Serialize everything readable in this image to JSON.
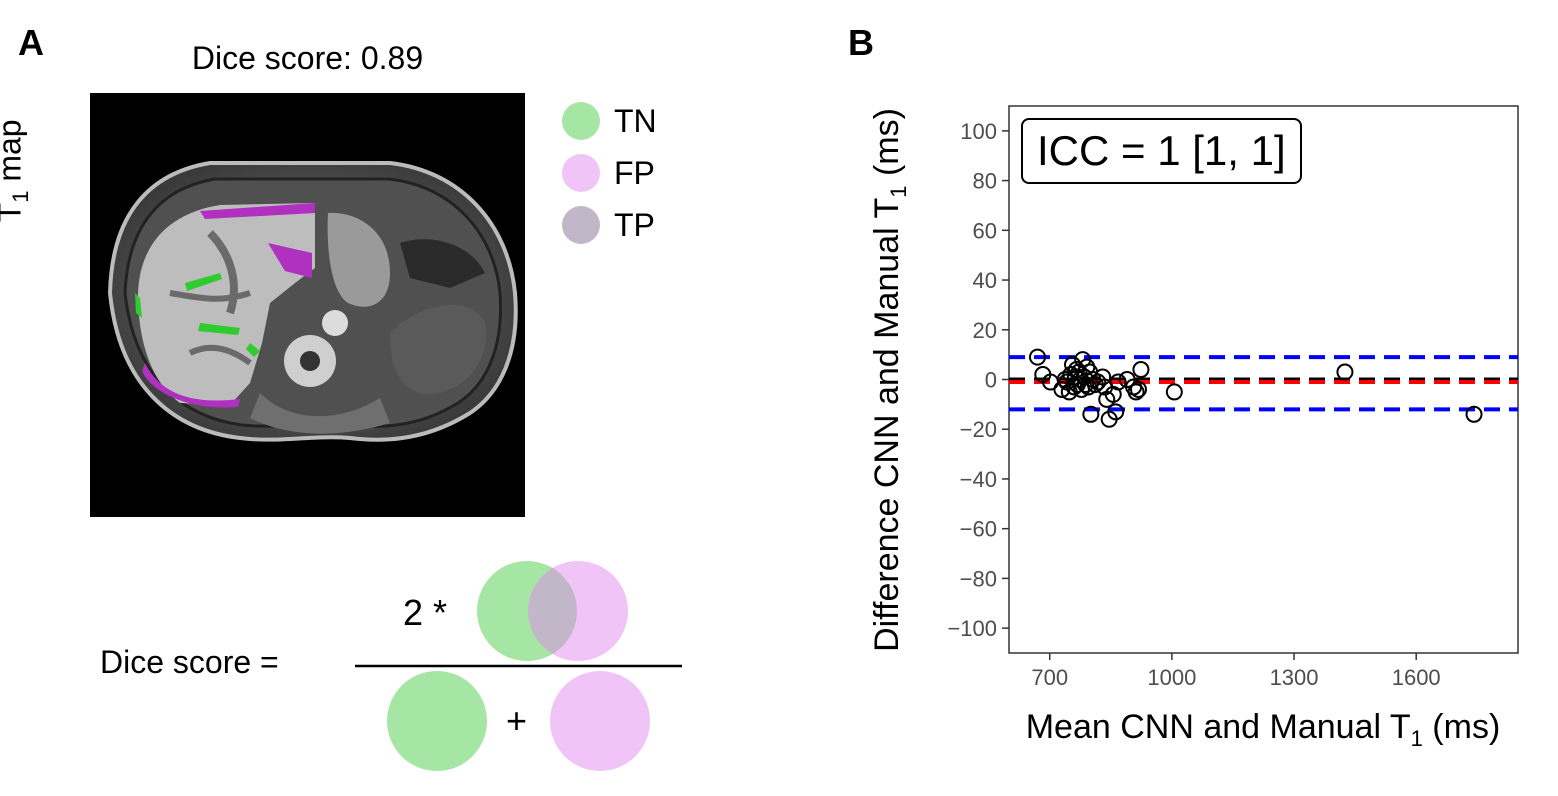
{
  "panel_a": {
    "letter": "A",
    "title": "Dice score: 0.89",
    "ylabel_main": "T",
    "ylabel_sub": "1",
    "ylabel_rest": " map",
    "legend": [
      {
        "label": "TN",
        "color": "#a5e6a4"
      },
      {
        "label": "FP",
        "color": "#f0c4f7"
      },
      {
        "label": "TP",
        "color": "#c2b7c9"
      }
    ],
    "formula": {
      "label": "Dice score =",
      "numerator_prefix": "2 *",
      "operator": "+"
    },
    "colors": {
      "green": "#a5e6a4",
      "pink": "#f0c4f7",
      "overlap": "#c2b7c9",
      "mask_green": "#2ecc2e",
      "mask_magenta": "#b030c0"
    }
  },
  "panel_b": {
    "letter": "B",
    "annotation": "ICC = 1 [1, 1]"
  },
  "chart_data": {
    "type": "scatter",
    "xlabel": "Mean CNN and Manual T₁ (ms)",
    "ylabel": "Difference CNN and Manual T₁ (ms)",
    "xlim": [
      600,
      1850
    ],
    "ylim": [
      -110,
      110
    ],
    "xticks": [
      700,
      1000,
      1300,
      1600
    ],
    "yticks": [
      100,
      80,
      60,
      40,
      20,
      0,
      -20,
      -40,
      -60,
      -80,
      -100
    ],
    "grid": false,
    "reference_lines": [
      {
        "y": 9,
        "color": "#0000ff",
        "style": "dashed"
      },
      {
        "y": -12,
        "color": "#0000ff",
        "style": "dashed"
      },
      {
        "y": 0,
        "color": "#000000",
        "style": "dashed"
      },
      {
        "y": -1,
        "color": "#ff0000",
        "style": "dashed"
      }
    ],
    "points": [
      {
        "x": 670,
        "y": 9
      },
      {
        "x": 683,
        "y": 2
      },
      {
        "x": 702,
        "y": -1
      },
      {
        "x": 730,
        "y": -4
      },
      {
        "x": 738,
        "y": 0
      },
      {
        "x": 742,
        "y": -1
      },
      {
        "x": 748,
        "y": -5
      },
      {
        "x": 752,
        "y": 2
      },
      {
        "x": 756,
        "y": 6
      },
      {
        "x": 760,
        "y": -3
      },
      {
        "x": 763,
        "y": 1
      },
      {
        "x": 766,
        "y": 4
      },
      {
        "x": 768,
        "y": -2
      },
      {
        "x": 772,
        "y": 3
      },
      {
        "x": 775,
        "y": 0
      },
      {
        "x": 778,
        "y": -4
      },
      {
        "x": 781,
        "y": 8
      },
      {
        "x": 785,
        "y": 1
      },
      {
        "x": 788,
        "y": -2
      },
      {
        "x": 791,
        "y": 5
      },
      {
        "x": 795,
        "y": -3
      },
      {
        "x": 798,
        "y": 3
      },
      {
        "x": 801,
        "y": -14
      },
      {
        "x": 806,
        "y": 0
      },
      {
        "x": 812,
        "y": -2
      },
      {
        "x": 818,
        "y": -1
      },
      {
        "x": 830,
        "y": 1
      },
      {
        "x": 835,
        "y": -3
      },
      {
        "x": 840,
        "y": -8
      },
      {
        "x": 846,
        "y": -16
      },
      {
        "x": 856,
        "y": -6
      },
      {
        "x": 862,
        "y": -13
      },
      {
        "x": 868,
        "y": -1
      },
      {
        "x": 890,
        "y": 0
      },
      {
        "x": 906,
        "y": -3
      },
      {
        "x": 912,
        "y": -5
      },
      {
        "x": 918,
        "y": -4
      },
      {
        "x": 924,
        "y": 4
      },
      {
        "x": 1006,
        "y": -5
      },
      {
        "x": 1425,
        "y": 3
      },
      {
        "x": 1742,
        "y": -14
      }
    ]
  }
}
